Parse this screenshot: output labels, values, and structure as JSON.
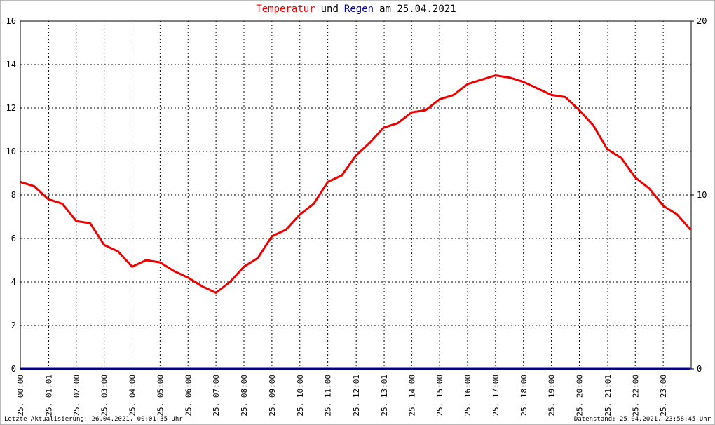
{
  "chart_data": {
    "type": "line",
    "title_parts": [
      "Temperatur",
      "und",
      "Regen",
      "am 25.04.2021"
    ],
    "footer_left": "Letzte Aktualisierung: 26.04.2021, 00:01:35 Uhr",
    "footer_right": "Datenstand: 25.04.2021, 23:58:45 Uhr",
    "x": [
      0,
      0.5,
      1,
      1.5,
      2,
      2.5,
      3,
      3.5,
      4,
      4.5,
      5,
      5.5,
      6,
      6.5,
      7,
      7.5,
      8,
      8.5,
      9,
      9.5,
      10,
      10.5,
      11,
      11.5,
      12,
      12.5,
      13,
      13.5,
      14,
      14.5,
      15,
      15.5,
      16,
      16.5,
      17,
      17.5,
      18,
      18.5,
      19,
      19.5,
      20,
      20.5,
      21,
      21.5,
      22,
      22.5,
      23,
      23.5,
      23.98
    ],
    "series": [
      {
        "name": "Temperatur",
        "color": "#ee0000",
        "axis": "y",
        "values": [
          8.6,
          8.4,
          7.8,
          7.6,
          6.8,
          6.7,
          5.7,
          5.4,
          4.7,
          5.0,
          4.9,
          4.5,
          4.2,
          3.8,
          3.5,
          4.0,
          4.7,
          5.1,
          6.1,
          6.4,
          7.1,
          7.6,
          8.6,
          8.9,
          9.8,
          10.4,
          11.1,
          11.3,
          11.8,
          11.9,
          12.4,
          12.6,
          13.1,
          13.3,
          13.5,
          13.4,
          13.2,
          12.9,
          12.6,
          12.5,
          11.9,
          11.2,
          10.1,
          9.7,
          8.8,
          8.3,
          7.5,
          7.1,
          6.4
        ]
      },
      {
        "name": "Regen",
        "color": "#000099",
        "axis": "y2",
        "values": [
          0,
          0,
          0,
          0,
          0,
          0,
          0,
          0,
          0,
          0,
          0,
          0,
          0,
          0,
          0,
          0,
          0,
          0,
          0,
          0,
          0,
          0,
          0,
          0,
          0,
          0,
          0,
          0,
          0,
          0,
          0,
          0,
          0,
          0,
          0,
          0,
          0,
          0,
          0,
          0,
          0,
          0,
          0,
          0,
          0,
          0,
          0,
          0,
          0
        ]
      }
    ],
    "title_colors": [
      "#ee0000",
      "#000000",
      "#000099",
      "#000000"
    ],
    "xlim": [
      0,
      24
    ],
    "xticks": [
      {
        "value": 0,
        "label": "25. 00:00"
      },
      {
        "value": 1.017,
        "label": "25. 01:01"
      },
      {
        "value": 2,
        "label": "25. 02:00"
      },
      {
        "value": 3,
        "label": "25. 03:00"
      },
      {
        "value": 4,
        "label": "25. 04:00"
      },
      {
        "value": 5,
        "label": "25. 05:00"
      },
      {
        "value": 6,
        "label": "25. 06:00"
      },
      {
        "value": 7,
        "label": "25. 07:00"
      },
      {
        "value": 8,
        "label": "25. 08:00"
      },
      {
        "value": 9,
        "label": "25. 09:00"
      },
      {
        "value": 10,
        "label": "25. 10:00"
      },
      {
        "value": 11,
        "label": "25. 11:00"
      },
      {
        "value": 12.017,
        "label": "25. 12:01"
      },
      {
        "value": 13.017,
        "label": "25. 13:01"
      },
      {
        "value": 14,
        "label": "25. 14:00"
      },
      {
        "value": 15,
        "label": "25. 15:00"
      },
      {
        "value": 16,
        "label": "25. 16:00"
      },
      {
        "value": 17,
        "label": "25. 17:00"
      },
      {
        "value": 18,
        "label": "25. 18:00"
      },
      {
        "value": 19,
        "label": "25. 19:00"
      },
      {
        "value": 20,
        "label": "25. 20:00"
      },
      {
        "value": 21.017,
        "label": "25. 21:01"
      },
      {
        "value": 22,
        "label": "25. 22:00"
      },
      {
        "value": 23,
        "label": "25. 23:00"
      }
    ],
    "ylim": [
      0,
      16
    ],
    "yticks": [
      0,
      2,
      4,
      6,
      8,
      10,
      12,
      14,
      16
    ],
    "y2lim": [
      0,
      20
    ],
    "y2ticks": [
      0,
      10,
      20
    ],
    "grid": true
  }
}
